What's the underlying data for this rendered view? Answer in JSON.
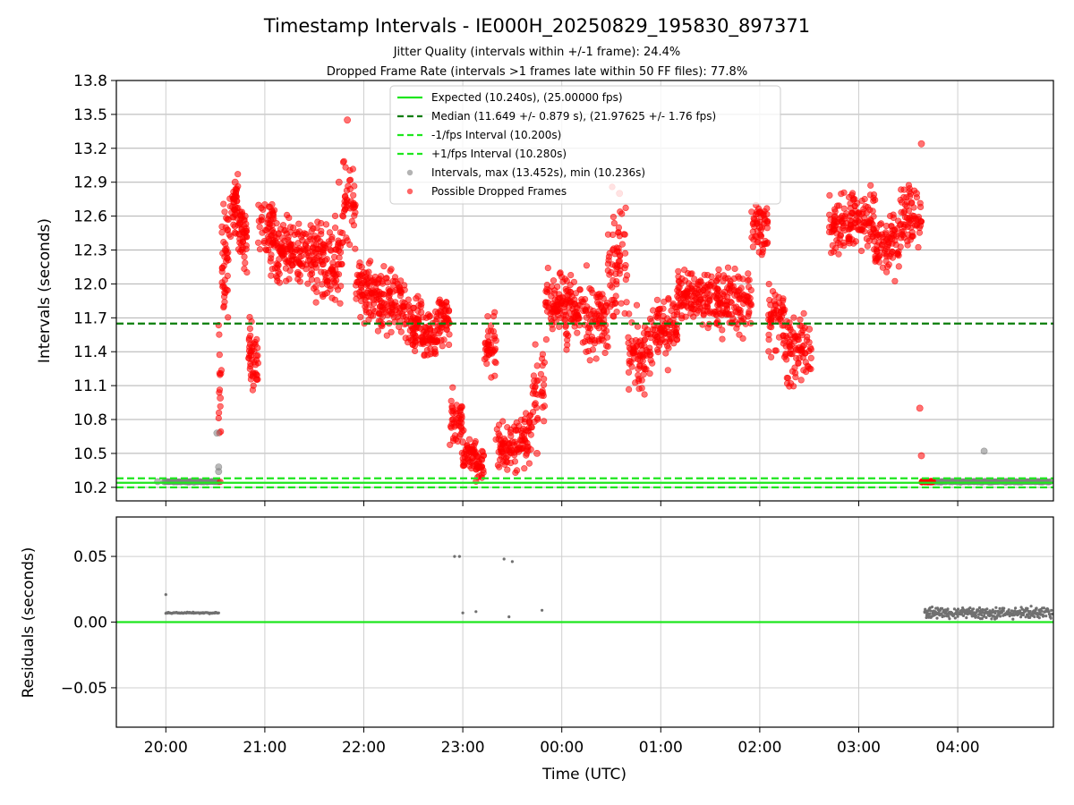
{
  "chart_data": [
    {
      "type": "scatter",
      "title": "Timestamp Intervals - IE000H_20250829_195830_897371",
      "subtitle_lines": [
        "Jitter Quality (intervals within +/-1 frame): 24.4%",
        "Dropped Frame Rate (intervals >1 frames late within 50 FF files): 77.8%"
      ],
      "ylabel": "Intervals (seconds)",
      "xlabel": "",
      "ylim": [
        10.08,
        13.8
      ],
      "yticks": [
        "13.8",
        "13.5",
        "13.2",
        "12.9",
        "12.6",
        "12.3",
        "12.0",
        "11.7",
        "11.4",
        "11.1",
        "10.8",
        "10.5",
        "10.2"
      ],
      "xticks": [
        "20:00",
        "21:00",
        "22:00",
        "23:00",
        "00:00",
        "01:00",
        "02:00",
        "03:00",
        "04:00"
      ],
      "grid": true,
      "legend_position": "top-center",
      "reference_lines": [
        {
          "label": "Expected (10.240s), (25.00000 fps)",
          "value": 10.24,
          "style": "solid",
          "color": "#1ee61e"
        },
        {
          "label": "Median (11.649 +/- 0.879 s), (21.97625 +/- 1.76 fps)",
          "value": 11.649,
          "style": "dashed",
          "color": "#0a7d0a"
        },
        {
          "label": "-1/fps Interval (10.200s)",
          "value": 10.2,
          "style": "dashed",
          "color": "#1ee61e"
        },
        {
          "label": "+1/fps Interval (10.280s)",
          "value": 10.28,
          "style": "dashed",
          "color": "#1ee61e"
        }
      ],
      "series": [
        {
          "name": "Intervals, max (13.452s), min (10.236s)",
          "color": "#808080",
          "points": [
            {
              "x": "19:55",
              "y": 10.25
            },
            {
              "x": "20:05",
              "y": 10.25
            },
            {
              "x": "20:15",
              "y": 10.25
            },
            {
              "x": "20:25",
              "y": 10.25
            },
            {
              "x": "20:32",
              "y": 10.34
            },
            {
              "x": "20:32",
              "y": 10.38
            },
            {
              "x": "20:31",
              "y": 10.68
            },
            {
              "x": "04:16",
              "y": 10.52
            },
            {
              "x": "03:50",
              "y": 10.25
            },
            {
              "x": "04:10",
              "y": 10.25
            },
            {
              "x": "04:30",
              "y": 10.25
            },
            {
              "x": "04:50",
              "y": 10.25
            }
          ]
        },
        {
          "name": "Possible Dropped Frames",
          "color": "#ff0000",
          "points": [
            {
              "x": "20:33",
              "y": 10.99
            },
            {
              "x": "20:36",
              "y": 12.3
            },
            {
              "x": "20:42",
              "y": 12.9
            },
            {
              "x": "20:48",
              "y": 12.6
            },
            {
              "x": "20:53",
              "y": 11.2
            },
            {
              "x": "21:00",
              "y": 12.7
            },
            {
              "x": "21:10",
              "y": 12.3
            },
            {
              "x": "21:20",
              "y": 12.1
            },
            {
              "x": "21:32",
              "y": 12.4
            },
            {
              "x": "21:45",
              "y": 12.9
            },
            {
              "x": "21:50",
              "y": 13.45
            },
            {
              "x": "22:00",
              "y": 12.1
            },
            {
              "x": "22:10",
              "y": 11.8
            },
            {
              "x": "22:20",
              "y": 11.8
            },
            {
              "x": "22:30",
              "y": 11.6
            },
            {
              "x": "22:40",
              "y": 11.5
            },
            {
              "x": "22:50",
              "y": 11.7
            },
            {
              "x": "23:00",
              "y": 10.6
            },
            {
              "x": "23:10",
              "y": 10.3
            },
            {
              "x": "23:20",
              "y": 11.5
            },
            {
              "x": "23:30",
              "y": 10.6
            },
            {
              "x": "23:45",
              "y": 10.5
            },
            {
              "x": "23:55",
              "y": 11.8
            },
            {
              "x": "00:10",
              "y": 11.7
            },
            {
              "x": "00:25",
              "y": 11.5
            },
            {
              "x": "00:35",
              "y": 12.8
            },
            {
              "x": "00:45",
              "y": 11.4
            },
            {
              "x": "01:00",
              "y": 11.6
            },
            {
              "x": "01:15",
              "y": 11.9
            },
            {
              "x": "01:30",
              "y": 11.9
            },
            {
              "x": "01:45",
              "y": 11.9
            },
            {
              "x": "02:00",
              "y": 12.5
            },
            {
              "x": "02:15",
              "y": 11.5
            },
            {
              "x": "02:30",
              "y": 11.6
            },
            {
              "x": "02:50",
              "y": 12.6
            },
            {
              "x": "03:05",
              "y": 12.4
            },
            {
              "x": "03:20",
              "y": 12.4
            },
            {
              "x": "03:35",
              "y": 12.8
            },
            {
              "x": "03:38",
              "y": 13.24
            },
            {
              "x": "03:37",
              "y": 10.9
            },
            {
              "x": "03:38",
              "y": 10.48
            },
            {
              "x": "03:41",
              "y": 10.25
            }
          ]
        }
      ]
    },
    {
      "type": "scatter",
      "ylabel": "Residuals (seconds)",
      "xlabel": "Time (UTC)",
      "ylim": [
        -0.08,
        0.08
      ],
      "yticks": [
        "0.05",
        "0.00",
        "−0.05"
      ],
      "xticks": [
        "20:00",
        "21:00",
        "22:00",
        "23:00",
        "00:00",
        "01:00",
        "02:00",
        "03:00",
        "04:00"
      ],
      "grid": true,
      "reference_lines": [
        {
          "value": 0.0,
          "style": "solid",
          "color": "#1ee61e"
        }
      ],
      "series": [
        {
          "color": "#707070",
          "points": [
            {
              "x": "20:00",
              "y": 0.021
            },
            {
              "x": "20:10",
              "y": 0.007
            },
            {
              "x": "20:30",
              "y": 0.007
            },
            {
              "x": "22:55",
              "y": 0.05
            },
            {
              "x": "22:58",
              "y": 0.05
            },
            {
              "x": "23:00",
              "y": 0.007
            },
            {
              "x": "23:08",
              "y": 0.008
            },
            {
              "x": "23:25",
              "y": 0.048
            },
            {
              "x": "23:30",
              "y": 0.046
            },
            {
              "x": "23:28",
              "y": 0.004
            },
            {
              "x": "23:48",
              "y": 0.009
            },
            {
              "x": "03:40",
              "y": 0.008
            },
            {
              "x": "04:00",
              "y": 0.007
            },
            {
              "x": "04:30",
              "y": 0.006
            },
            {
              "x": "04:55",
              "y": 0.008
            }
          ]
        }
      ]
    }
  ]
}
